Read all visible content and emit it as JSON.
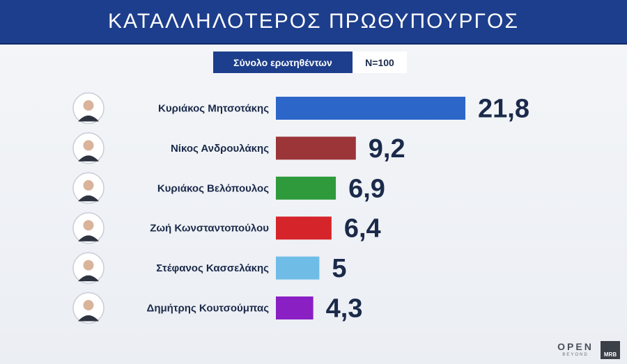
{
  "header": {
    "title": "ΚΑΤΑΛΛΗΛΟΤΕΡΟΣ ΠΡΩΘΥΠΟΥΡΓΟΣ"
  },
  "sample": {
    "label": "Σύνολο ερωτηθέντων",
    "value": "N=100"
  },
  "chart_data": {
    "type": "bar",
    "orientation": "horizontal",
    "title": "ΚΑΤΑΛΛΗΛΟΤΕΡΟΣ ΠΡΩΘΥΠΟΥΡΓΟΣ",
    "categories": [
      "Κυριάκος Μητσοτάκης",
      "Νίκος Ανδρουλάκης",
      "Κυριάκος Βελόπουλος",
      "Ζωή Κωνσταντοπούλου",
      "Στέφανος Κασσελάκης",
      "Δημήτρης Κουτσούμπας"
    ],
    "values": [
      21.8,
      9.2,
      6.9,
      6.4,
      5,
      4.3
    ],
    "value_labels": [
      "21,8",
      "9,2",
      "6,9",
      "6,4",
      "5",
      "4,3"
    ],
    "colors": [
      "#2d66c9",
      "#9b3538",
      "#2e9a3c",
      "#d5242a",
      "#6fbde6",
      "#8a1fc4"
    ],
    "xlim": [
      0,
      21.8
    ],
    "grid": false,
    "legend": "none"
  },
  "theme": {
    "title_bar": "#1d3e8c",
    "label_color": "#1b2a4a",
    "value_color": "#1b2a4a"
  },
  "logos": {
    "open": "OPEN",
    "beyond": "BEYOND",
    "mrb": "MRB"
  }
}
